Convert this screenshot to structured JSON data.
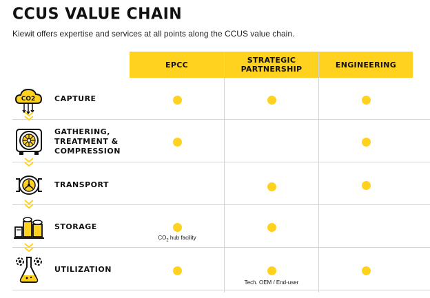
{
  "title": "CCUS VALUE CHAIN",
  "subtitle": "Kiewit offers expertise and services at all points along the CCUS value chain.",
  "columns": {
    "epcc": "EPCC",
    "strategic_line1": "STRATEGIC",
    "strategic_line2": "PARTNERSHIP",
    "engineering": "ENGINEERING"
  },
  "rows": [
    {
      "label": "CAPTURE",
      "icon": "co2-cloud-icon",
      "epcc": true,
      "strategic": true,
      "engineering": true
    },
    {
      "label_lines": [
        "GATHERING,",
        "TREATMENT &",
        "COMPRESSION"
      ],
      "icon": "compressor-icon",
      "epcc": true,
      "strategic": false,
      "engineering": true
    },
    {
      "label": "TRANSPORT",
      "icon": "pipeline-valve-icon",
      "epcc": false,
      "strategic": true,
      "engineering": true
    },
    {
      "label": "STORAGE",
      "icon": "storage-facility-icon",
      "epcc": true,
      "strategic": true,
      "engineering": false
    },
    {
      "label": "UTILIZATION",
      "icon": "gears-flask-icon",
      "epcc": true,
      "strategic": true,
      "engineering": true
    }
  ],
  "notes": {
    "storage_epcc_pre": "CO",
    "storage_epcc_sub": "2",
    "storage_epcc_post": " hub facility",
    "utilization_strategic": "Tech. OEM / End-user"
  },
  "icon_text": {
    "co2": "CO2"
  },
  "colors": {
    "accent": "#FFD21F",
    "text": "#111111",
    "grid": "#d4d4d4"
  }
}
